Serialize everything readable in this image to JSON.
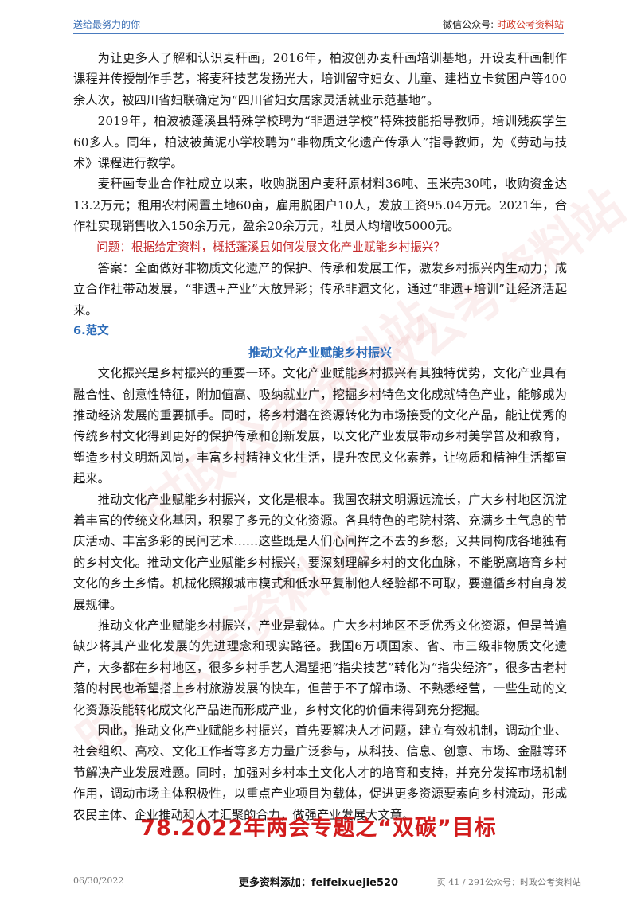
{
  "header": {
    "left_text": "送给最努力的你",
    "right_label": "微信公众号: ",
    "right_account": "时政公考资料站"
  },
  "paragraphs_intro": [
    "为让更多人了解和认识麦秆画，2016年，柏波创办麦秆画培训基地，开设麦秆画制作课程并传授制作手艺，将麦秆技艺发扬光大，培训留守妇女、儿童、建档立卡贫困户等400余人次，被四川省妇联确定为“四川省妇女居家灵活就业示范基地”。",
    "2019年，柏波被蓬溪县特殊学校聘为“非遗进学校”特殊技能指导教师，培训残疾学生60多人。同年，柏波被黄泥小学校聘为“非物质文化遗产传承人”指导教师，为《劳动与技术》课程进行教学。",
    "麦秆画专业合作社成立以来，收购脱困户麦秆原材料36吨、玉米壳30吨，收购资金达13.2万元；租用农村闲置土地60亩，雇用脱困户10人，发放工资95.04万元。2021年，合作社实现销售收入150余万元，盈余20余万元，社员人均增收5000元。"
  ],
  "question": "问题：根据给定资料，概括蓬溪县如何发展文化产业赋能乡村振兴？",
  "answer": "答案：全面做好非物质文化遗产的保护、传承和发展工作，激发乡村振兴内生动力；成立合作社带动发展，“非遗+产业”大放异彩；传承非遗文化，通过“非遗+培训”让经济活起来。",
  "section_label": "6.范文",
  "essay_title": "推动文化产业赋能乡村振兴",
  "essay_paragraphs": [
    "文化振兴是乡村振兴的重要一环。文化产业赋能乡村振兴有其独特优势，文化产业具有融合性、创意性特征，附加值高、吸纳就业广，挖掘乡村特色文化成就特色产业，能够成为推动经济发展的重要抓手。同时，将乡村潜在资源转化为市场接受的文化产品，能让优秀的传统乡村文化得到更好的保护传承和创新发展，以文化产业发展带动乡村美学普及和教育，塑造乡村文明新风尚，丰富乡村精神文化生活，提升农民文化素养，让物质和精神生活都富起来。",
    "推动文化产业赋能乡村振兴，文化是根本。我国农耕文明源远流长，广大乡村地区沉淀着丰富的传统文化基因，积累了多元的文化资源。各具特色的宅院村落、充满乡土气息的节庆活动、丰富多彩的民间艺术……这些既是人们心间挥之不去的乡愁，又共同构成各地独有的乡村文化。推动文化产业赋能乡村振兴，要深刻理解乡村的文化血脉，不能脱离培育乡村文化的乡土乡情。机械化照搬城市模式和低水平复制他人经验都不可取，要遵循乡村自身发展规律。",
    "推动文化产业赋能乡村振兴，产业是载体。广大乡村地区不乏优秀文化资源，但是普遍缺少将其产业化发展的先进理念和现实路径。我国6万项国家、省、市三级非物质文化遗产，大多都在乡村地区，很多乡村手艺人渴望把“指尖技艺”转化为“指尖经济”，很多古老村落的村民也希望搭上乡村旅游发展的快车，但苦于不了解市场、不熟悉经营，一些生动的文化资源没能转化成文化产品进而形成产业，乡村文化的价值未得到充分挖掘。",
    "因此，推动文化产业赋能乡村振兴，首先要解决人才问题，建立有效机制，调动企业、社会组织、高校、文化工作者等多方力量广泛参与，从科技、信息、创意、市场、金融等环节解决产业发展难题。同时，加强对乡村本土文化人才的培育和支持，并充分发挥市场机制作用，调动市场主体积极性，以重点产业项目为载体，促进更多资源要素向乡村流动，形成农民主体、企业推动和人才汇聚的合力，做强产业发展大文章。"
  ],
  "big_title": "78.2022年两会专题之“双碳”目标",
  "footer": {
    "date": "06/30/2022",
    "center": "更多资料添加：feifeixuejie520",
    "page": "页 41 / 291公众号：时政公考资料站"
  },
  "watermark_text": "时政公考资料站"
}
